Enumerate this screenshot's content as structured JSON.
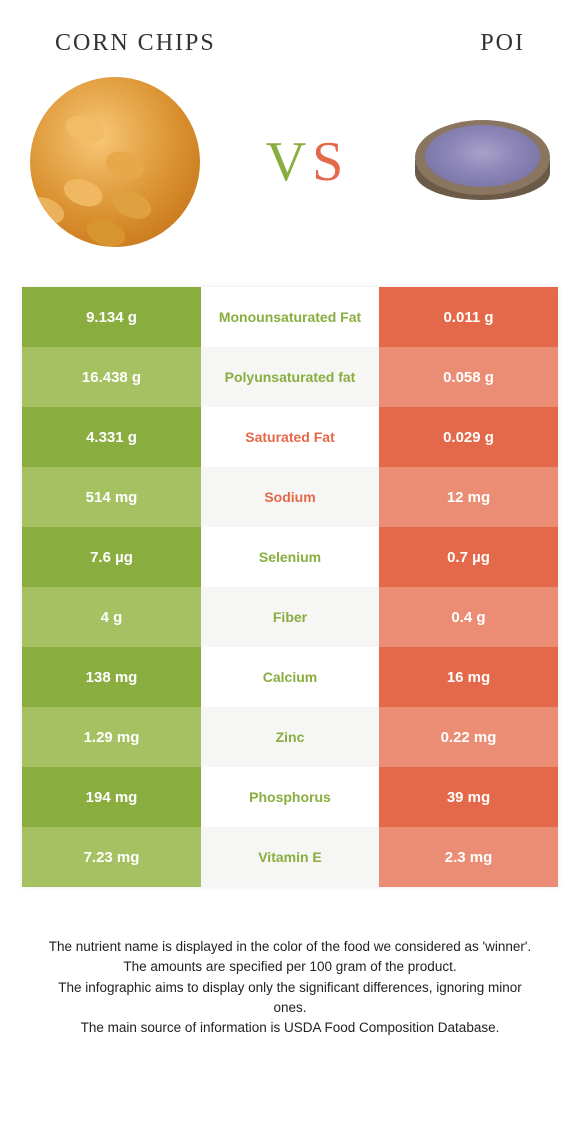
{
  "header": {
    "left_title": "Corn chips",
    "right_title": "Poi"
  },
  "vs": {
    "v": "V",
    "s": "S"
  },
  "colors": {
    "left_strong": "#8aad3f",
    "left_light": "#a6c161",
    "right_strong": "#e4684a",
    "right_light": "#ea8d74",
    "mid_bg_a": "#ffffff",
    "mid_bg_b": "#f6f6f4",
    "mid_text_left": "#8aad3f",
    "mid_text_right": "#e4684a"
  },
  "rows": [
    {
      "left": "9.134 g",
      "label": "Monounsaturated Fat",
      "right": "0.011 g",
      "winner": "left"
    },
    {
      "left": "16.438 g",
      "label": "Polyunsaturated fat",
      "right": "0.058 g",
      "winner": "left"
    },
    {
      "left": "4.331 g",
      "label": "Saturated Fat",
      "right": "0.029 g",
      "winner": "right"
    },
    {
      "left": "514 mg",
      "label": "Sodium",
      "right": "12 mg",
      "winner": "right"
    },
    {
      "left": "7.6 µg",
      "label": "Selenium",
      "right": "0.7 µg",
      "winner": "left"
    },
    {
      "left": "4 g",
      "label": "Fiber",
      "right": "0.4 g",
      "winner": "left"
    },
    {
      "left": "138 mg",
      "label": "Calcium",
      "right": "16 mg",
      "winner": "left"
    },
    {
      "left": "1.29 mg",
      "label": "Zinc",
      "right": "0.22 mg",
      "winner": "left"
    },
    {
      "left": "194 mg",
      "label": "Phosphorus",
      "right": "39 mg",
      "winner": "left"
    },
    {
      "left": "7.23 mg",
      "label": "Vitamin E",
      "right": "2.3 mg",
      "winner": "left"
    }
  ],
  "footer": {
    "line1": "The nutrient name is displayed in the color of the food we considered as 'winner'.",
    "line2": "The amounts are specified per 100 gram of the product.",
    "line3": "The infographic aims to display only the significant differences, ignoring minor ones.",
    "line4": "The main source of information is USDA Food Composition Database."
  }
}
